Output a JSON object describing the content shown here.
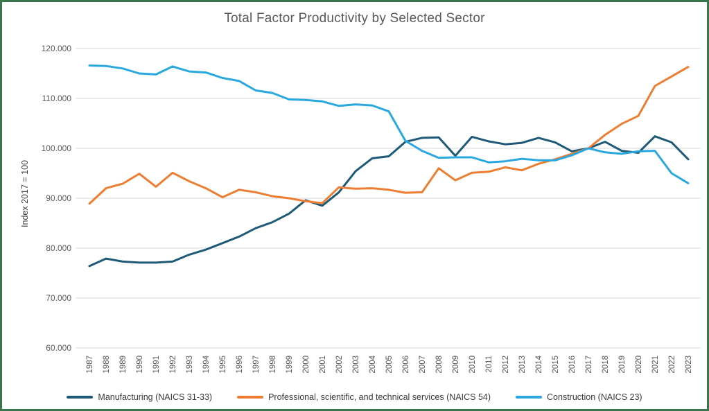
{
  "title": "Total Factor Productivity by Selected Sector",
  "chart_data": {
    "type": "line",
    "title": "Total Factor Productivity by Selected Sector",
    "xlabel": "",
    "ylabel": "Index 2017 = 100",
    "ylim": [
      60,
      120
    ],
    "grid": true,
    "legend_position": "bottom",
    "background_color": "#FFFFFF",
    "border_color": "#3A764D",
    "gridline_color": "#D9D9D9",
    "axis_text_color": "#595959",
    "y_ticks": [
      {
        "value": 120,
        "label": "120.000"
      },
      {
        "value": 110,
        "label": "110.000"
      },
      {
        "value": 100,
        "label": "100.000"
      },
      {
        "value": 90,
        "label": "90.000"
      },
      {
        "value": 80,
        "label": "80.000"
      },
      {
        "value": 70,
        "label": "70.000"
      },
      {
        "value": 60,
        "label": "60.000"
      }
    ],
    "x": [
      "1987",
      "1988",
      "1989",
      "1990",
      "1991",
      "1992",
      "1993",
      "1994",
      "1995",
      "1996",
      "1997",
      "1998",
      "1999",
      "2000",
      "2001",
      "2002",
      "2003",
      "2004",
      "2005",
      "2006",
      "2007",
      "2008",
      "2009",
      "2010",
      "2011",
      "2012",
      "2013",
      "2014",
      "2015",
      "2016",
      "2017",
      "2018",
      "2019",
      "2020",
      "2021",
      "2022",
      "2023"
    ],
    "series": [
      {
        "name": "Manufacturing (NAICS 31-33)",
        "slug": "manufacturing",
        "color": "#1E5A78",
        "values": [
          76.4,
          77.9,
          77.3,
          77.1,
          77.1,
          77.3,
          78.7,
          79.7,
          81.0,
          82.3,
          84.0,
          85.2,
          86.9,
          89.6,
          88.5,
          91.2,
          95.4,
          98.0,
          98.4,
          101.3,
          102.1,
          102.2,
          98.5,
          102.3,
          101.4,
          100.8,
          101.1,
          102.1,
          101.2,
          99.4,
          100.0,
          101.3,
          99.5,
          99.1,
          102.4,
          101.2,
          97.8
        ]
      },
      {
        "name": "Professional, scientific, and technical services (NAICS 54)",
        "slug": "professional-services",
        "color": "#ED7D31",
        "values": [
          88.9,
          92.0,
          92.9,
          94.9,
          92.3,
          95.1,
          93.4,
          92.0,
          90.2,
          91.7,
          91.2,
          90.4,
          90.0,
          89.4,
          89.0,
          92.2,
          91.9,
          92.0,
          91.7,
          91.1,
          91.2,
          96.0,
          93.6,
          95.1,
          95.3,
          96.2,
          95.6,
          96.9,
          97.8,
          98.9,
          100.0,
          102.7,
          104.9,
          106.5,
          112.5,
          114.4,
          116.3
        ]
      },
      {
        "name": "Construction (NAICS 23)",
        "slug": "construction",
        "color": "#29A8DF",
        "values": [
          116.6,
          116.5,
          116.0,
          115.0,
          114.8,
          116.4,
          115.4,
          115.2,
          114.1,
          113.5,
          111.6,
          111.1,
          109.8,
          109.7,
          109.4,
          108.5,
          108.8,
          108.6,
          107.4,
          101.5,
          99.5,
          98.1,
          98.2,
          98.2,
          97.2,
          97.4,
          97.9,
          97.6,
          97.6,
          98.6,
          100.0,
          99.2,
          98.9,
          99.4,
          99.5,
          95.0,
          93.0
        ]
      }
    ]
  }
}
